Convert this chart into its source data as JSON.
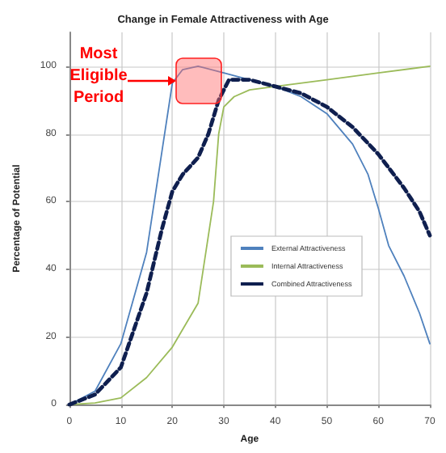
{
  "chart_data": {
    "type": "line",
    "title": "Change in Female Attractiveness with Age",
    "xlabel": "Age",
    "ylabel": "Percentage of Potential",
    "xlim": [
      0,
      70
    ],
    "xticks": [
      0,
      10,
      20,
      30,
      40,
      50,
      60,
      70
    ],
    "ylim": [
      0,
      110
    ],
    "yticks": [
      0,
      20,
      40,
      60,
      80,
      100
    ],
    "grid": true,
    "legend": "right",
    "marker": "none",
    "annotations": [
      "Most Eligible Period"
    ],
    "series": [
      {
        "name": "External Attractiveness",
        "color": "#4f81bd",
        "line_style": "solid",
        "x": [
          0,
          5,
          10,
          15,
          18,
          20,
          22,
          25,
          30,
          35,
          40,
          45,
          50,
          55,
          58,
          60,
          62,
          65,
          68,
          70
        ],
        "values": [
          0,
          4,
          18,
          45,
          75,
          95,
          99,
          100,
          98,
          96,
          94,
          91,
          86,
          77,
          68,
          58,
          47,
          38,
          27,
          18
        ]
      },
      {
        "name": "Internal Attractiveness",
        "color": "#9bbb59",
        "line_style": "solid",
        "x": [
          0,
          5,
          10,
          15,
          20,
          25,
          27,
          28,
          29,
          30,
          32,
          35,
          40,
          50,
          60,
          70
        ],
        "values": [
          0,
          0.5,
          2,
          8,
          17,
          30,
          50,
          60,
          80,
          88,
          91,
          93,
          94,
          96,
          98,
          100
        ]
      },
      {
        "name": "Combined Attractiveness",
        "color": "#0f1f4f",
        "line_style": "dashed",
        "x": [
          0,
          5,
          10,
          15,
          18,
          20,
          22,
          25,
          27,
          29,
          31,
          35,
          40,
          45,
          50,
          55,
          60,
          65,
          68,
          70
        ],
        "values": [
          0,
          3,
          11,
          33,
          52,
          63,
          68,
          73,
          80,
          90,
          96,
          96,
          94,
          92,
          88,
          82,
          74,
          64,
          57,
          50
        ]
      }
    ]
  }
}
